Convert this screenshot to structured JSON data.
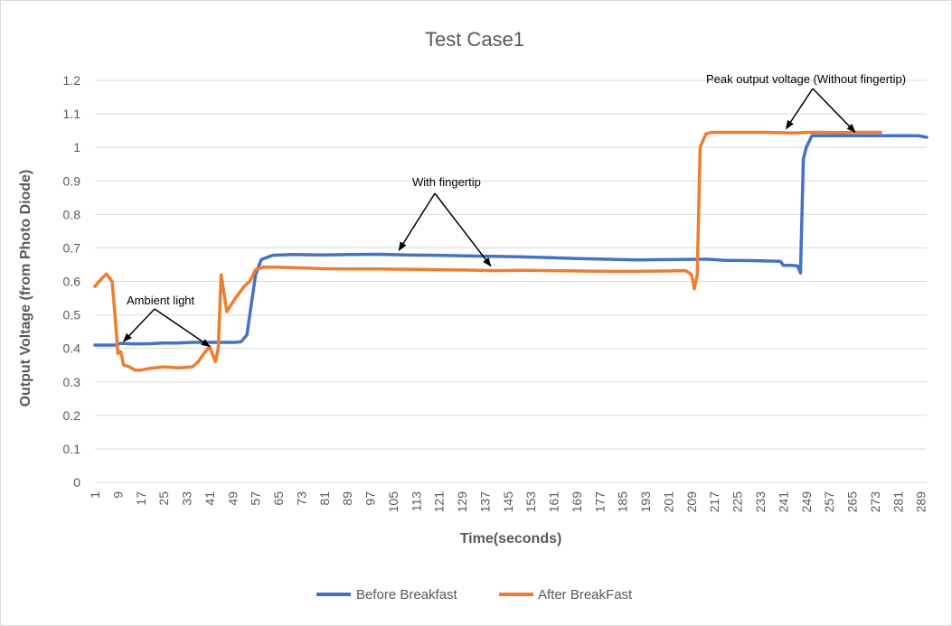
{
  "colors": {
    "series1": "#4472C4",
    "series2": "#ED7D31",
    "grid": "#d9d9d9",
    "text": "#595959"
  },
  "chart_data": {
    "type": "line",
    "title": "Test Case1",
    "xlabel": "Time(seconds)",
    "ylabel": "Output Voltage (from Photo Diode)",
    "xlim": [
      1,
      291
    ],
    "ylim": [
      0,
      1.2
    ],
    "yticks": [
      "0",
      "0.1",
      "0.2",
      "0.3",
      "0.4",
      "0.5",
      "0.6",
      "0.7",
      "0.8",
      "0.9",
      "1",
      "1.1",
      "1.2"
    ],
    "xticks": [
      "1",
      "9",
      "17",
      "25",
      "33",
      "41",
      "49",
      "57",
      "65",
      "73",
      "81",
      "89",
      "97",
      "105",
      "113",
      "121",
      "129",
      "137",
      "145",
      "153",
      "161",
      "169",
      "177",
      "185",
      "193",
      "201",
      "209",
      "217",
      "225",
      "233",
      "241",
      "249",
      "257",
      "265",
      "273",
      "281",
      "289"
    ],
    "grid": "horizontal",
    "legend_position": "bottom",
    "series": [
      {
        "name": "Before Breakfast",
        "color": "#4472C4",
        "points": [
          [
            1,
            0.41
          ],
          [
            5,
            0.41
          ],
          [
            8,
            0.41
          ],
          [
            10,
            0.415
          ],
          [
            15,
            0.413
          ],
          [
            20,
            0.414
          ],
          [
            25,
            0.416
          ],
          [
            30,
            0.416
          ],
          [
            35,
            0.418
          ],
          [
            40,
            0.418
          ],
          [
            45,
            0.418
          ],
          [
            50,
            0.418
          ],
          [
            52,
            0.42
          ],
          [
            54,
            0.44
          ],
          [
            57,
            0.62
          ],
          [
            59,
            0.665
          ],
          [
            63,
            0.678
          ],
          [
            70,
            0.68
          ],
          [
            80,
            0.679
          ],
          [
            90,
            0.68
          ],
          [
            100,
            0.681
          ],
          [
            110,
            0.679
          ],
          [
            120,
            0.678
          ],
          [
            130,
            0.676
          ],
          [
            140,
            0.675
          ],
          [
            150,
            0.673
          ],
          [
            160,
            0.671
          ],
          [
            170,
            0.668
          ],
          [
            180,
            0.666
          ],
          [
            190,
            0.664
          ],
          [
            200,
            0.665
          ],
          [
            210,
            0.666
          ],
          [
            215,
            0.666
          ],
          [
            220,
            0.663
          ],
          [
            230,
            0.662
          ],
          [
            240,
            0.66
          ],
          [
            241,
            0.648
          ],
          [
            244,
            0.648
          ],
          [
            246,
            0.646
          ],
          [
            247,
            0.625
          ],
          [
            248,
            0.965
          ],
          [
            249,
            1.0
          ],
          [
            251,
            1.035
          ],
          [
            260,
            1.035
          ],
          [
            270,
            1.035
          ],
          [
            280,
            1.035
          ],
          [
            288,
            1.035
          ],
          [
            291,
            1.03
          ]
        ]
      },
      {
        "name": "After BreakFast",
        "color": "#ED7D31",
        "points": [
          [
            1,
            0.585
          ],
          [
            3,
            0.605
          ],
          [
            5,
            0.622
          ],
          [
            7,
            0.6
          ],
          [
            8,
            0.5
          ],
          [
            9,
            0.385
          ],
          [
            10,
            0.39
          ],
          [
            11,
            0.35
          ],
          [
            13,
            0.345
          ],
          [
            15,
            0.335
          ],
          [
            17,
            0.335
          ],
          [
            20,
            0.34
          ],
          [
            25,
            0.345
          ],
          [
            30,
            0.342
          ],
          [
            35,
            0.345
          ],
          [
            37,
            0.36
          ],
          [
            39,
            0.385
          ],
          [
            41,
            0.405
          ],
          [
            43,
            0.36
          ],
          [
            44,
            0.4
          ],
          [
            45,
            0.62
          ],
          [
            47,
            0.51
          ],
          [
            50,
            0.55
          ],
          [
            53,
            0.585
          ],
          [
            55,
            0.6
          ],
          [
            57,
            0.635
          ],
          [
            60,
            0.643
          ],
          [
            65,
            0.642
          ],
          [
            70,
            0.641
          ],
          [
            80,
            0.638
          ],
          [
            90,
            0.637
          ],
          [
            100,
            0.637
          ],
          [
            110,
            0.636
          ],
          [
            120,
            0.635
          ],
          [
            130,
            0.634
          ],
          [
            140,
            0.632
          ],
          [
            150,
            0.633
          ],
          [
            160,
            0.632
          ],
          [
            170,
            0.631
          ],
          [
            180,
            0.63
          ],
          [
            190,
            0.63
          ],
          [
            200,
            0.631
          ],
          [
            207,
            0.632
          ],
          [
            209,
            0.62
          ],
          [
            210,
            0.578
          ],
          [
            211,
            0.62
          ],
          [
            212,
            1.0
          ],
          [
            214,
            1.04
          ],
          [
            216,
            1.045
          ],
          [
            225,
            1.045
          ],
          [
            235,
            1.045
          ],
          [
            245,
            1.043
          ],
          [
            250,
            1.045
          ],
          [
            255,
            1.045
          ],
          [
            260,
            1.044
          ],
          [
            265,
            1.045
          ],
          [
            270,
            1.045
          ],
          [
            275,
            1.045
          ]
        ]
      }
    ],
    "annotations": [
      {
        "text": "Ambient light",
        "arrows_to": [
          [
            11,
            0.41
          ],
          [
            41,
            0.395
          ]
        ]
      },
      {
        "text": "With fingertip",
        "arrows_to": [
          [
            107,
            0.682
          ],
          [
            139,
            0.635
          ]
        ]
      },
      {
        "text": "Peak output voltage (Without fingertip)",
        "arrows_to": [
          [
            242,
            1.045
          ],
          [
            266,
            1.035
          ]
        ]
      }
    ]
  },
  "legend": {
    "items": [
      {
        "label": "Before Breakfast",
        "color": "#4472C4"
      },
      {
        "label": "After BreakFast",
        "color": "#ED7D31"
      }
    ]
  }
}
